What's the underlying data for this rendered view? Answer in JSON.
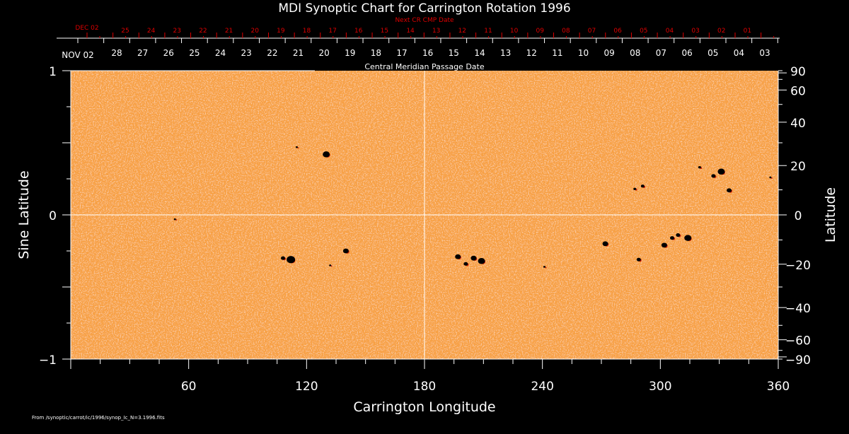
{
  "chart_data": {
    "type": "heatmap",
    "title": "MDI Synoptic Chart for Carrington Rotation 1996",
    "xlabel": "Carrington Longitude",
    "ylabel_left": "Sine Latitude",
    "ylabel_right": "Latitude",
    "top_axis_label": "Central Meridian Passage Date",
    "next_axis_label": "Next CR CMP Date",
    "xlim": [
      0,
      360
    ],
    "ylim": [
      -1,
      1
    ],
    "x_ticks": [
      60,
      120,
      180,
      240,
      300,
      360
    ],
    "y_ticks_left": [
      {
        "v": 1,
        "label": "1"
      },
      {
        "v": 0,
        "label": "0"
      },
      {
        "v": -1,
        "label": "−1"
      }
    ],
    "y_ticks_right": [
      90,
      60,
      40,
      20,
      0,
      -20,
      -40,
      -60,
      -90
    ],
    "y_tick_labels_right": [
      "90",
      "60",
      "40",
      "20",
      "0",
      "−20",
      "−40",
      "−60",
      "−90"
    ],
    "cmp_dates_first": "NOV 02",
    "cmp_dates": [
      "28",
      "27",
      "26",
      "25",
      "24",
      "23",
      "22",
      "21",
      "20",
      "19",
      "18",
      "17",
      "16",
      "15",
      "14",
      "13",
      "12",
      "11",
      "10",
      "09",
      "08",
      "07",
      "06",
      "05",
      "04",
      "03"
    ],
    "next_cmp_first": "DEC 02",
    "next_cmp_dates": [
      "25",
      "24",
      "23",
      "22",
      "21",
      "20",
      "19",
      "18",
      "17",
      "16",
      "15",
      "14",
      "13",
      "12",
      "11",
      "10",
      "09",
      "08",
      "07",
      "06",
      "05",
      "04",
      "03",
      "02",
      "01"
    ],
    "sunspots": [
      {
        "lon": 130,
        "slat": 0.42,
        "r": 5
      },
      {
        "lon": 115,
        "slat": 0.47,
        "r": 1.5
      },
      {
        "lon": 331,
        "slat": 0.3,
        "r": 5
      },
      {
        "lon": 327,
        "slat": 0.27,
        "r": 3
      },
      {
        "lon": 335,
        "slat": 0.17,
        "r": 3.5
      },
      {
        "lon": 320,
        "slat": 0.33,
        "r": 2
      },
      {
        "lon": 291,
        "slat": 0.2,
        "r": 2.5
      },
      {
        "lon": 287,
        "slat": 0.18,
        "r": 2
      },
      {
        "lon": 356,
        "slat": 0.26,
        "r": 1.5
      },
      {
        "lon": 112,
        "slat": -0.31,
        "r": 6
      },
      {
        "lon": 108,
        "slat": -0.3,
        "r": 3
      },
      {
        "lon": 140,
        "slat": -0.25,
        "r": 4
      },
      {
        "lon": 132,
        "slat": -0.35,
        "r": 1.5
      },
      {
        "lon": 197,
        "slat": -0.29,
        "r": 4
      },
      {
        "lon": 205,
        "slat": -0.3,
        "r": 4
      },
      {
        "lon": 209,
        "slat": -0.32,
        "r": 5
      },
      {
        "lon": 201,
        "slat": -0.34,
        "r": 3
      },
      {
        "lon": 272,
        "slat": -0.2,
        "r": 4
      },
      {
        "lon": 289,
        "slat": -0.31,
        "r": 3
      },
      {
        "lon": 241,
        "slat": -0.36,
        "r": 1.5
      },
      {
        "lon": 302,
        "slat": -0.21,
        "r": 4
      },
      {
        "lon": 306,
        "slat": -0.16,
        "r": 3
      },
      {
        "lon": 314,
        "slat": -0.16,
        "r": 5
      },
      {
        "lon": 309,
        "slat": -0.14,
        "r": 3
      },
      {
        "lon": 53,
        "slat": -0.03,
        "r": 1.5
      }
    ]
  },
  "footer": {
    "source": "From /synoptic/carrot/ic/1996/synop_Ic_N=3.1996.fits"
  }
}
